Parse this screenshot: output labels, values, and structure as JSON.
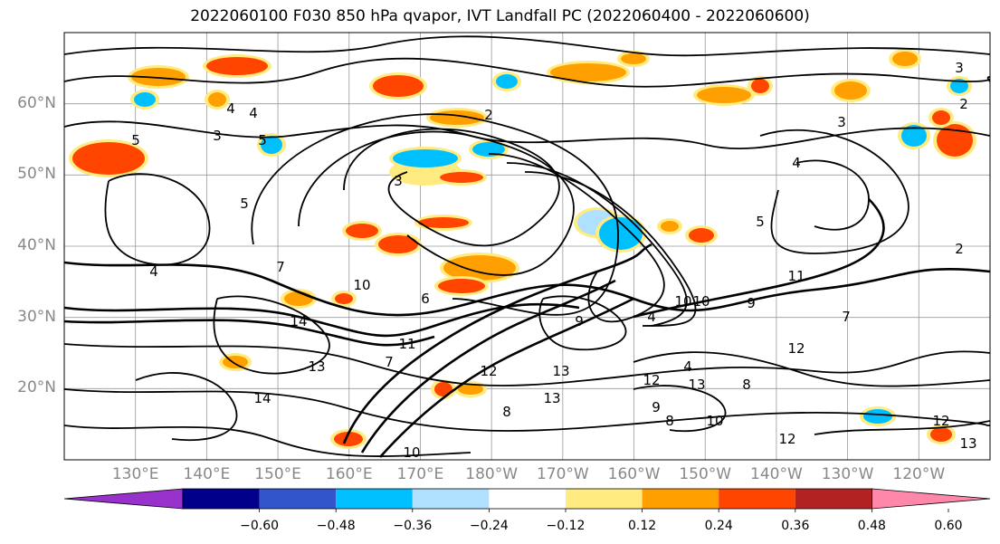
{
  "title": "2022060100 F030 850 hPa qvapor, IVT Landfall PC (2022060400 - 2022060600)",
  "map": {
    "projection": "PlateCarree",
    "lat_range": [
      10,
      70
    ],
    "lon_range": [
      120,
      250
    ],
    "lat_labels": [
      "20°N",
      "30°N",
      "40°N",
      "50°N",
      "60°N"
    ],
    "lon_labels": [
      "130°E",
      "140°E",
      "150°E",
      "160°E",
      "170°E",
      "180°W",
      "170°W",
      "160°W",
      "150°W",
      "140°W",
      "130°W",
      "120°W"
    ],
    "grid": true,
    "contour_labels": [
      "5",
      "4",
      "3",
      "2",
      "5",
      "4",
      "3",
      "6",
      "7",
      "8",
      "9",
      "10",
      "11",
      "12",
      "13",
      "14",
      "5",
      "4",
      "10",
      "9",
      "12",
      "13",
      "14",
      "11",
      "10",
      "12",
      "13",
      "5",
      "4",
      "3",
      "2",
      "7",
      "8",
      "9",
      "10",
      "12",
      "13",
      "2",
      "3",
      "4",
      "7",
      "4",
      "13",
      "8",
      "10",
      "12"
    ]
  },
  "colorbar": {
    "colors": [
      "#9932cc",
      "#00008b",
      "#3355cc",
      "#00bfff",
      "#b0e0ff",
      "#ffffff",
      "#ffeb80",
      "#ffa000",
      "#ff4500",
      "#b22222",
      "#ff88aa"
    ],
    "tick_labels": [
      "−0.60",
      "−0.48",
      "−0.36",
      "−0.24",
      "−0.12",
      "0.12",
      "0.24",
      "0.36",
      "0.48",
      "0.60"
    ],
    "extend": "both"
  }
}
